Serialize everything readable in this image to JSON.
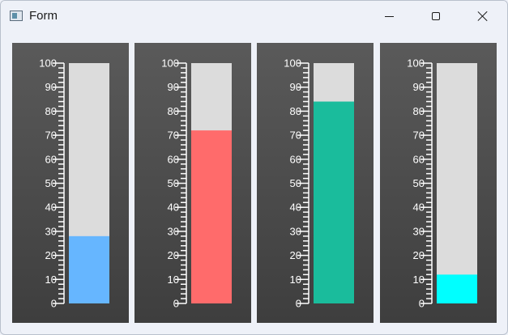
{
  "window": {
    "title": "Form",
    "controls": {
      "minimize": "minimize",
      "maximize": "maximize",
      "close": "close"
    }
  },
  "scale": {
    "min": 0,
    "max": 100,
    "major_step": 10,
    "minor_step": 2
  },
  "gauges": [
    {
      "value": 28,
      "fill_color": "#66b6ff"
    },
    {
      "value": 72,
      "fill_color": "#ff6b6b"
    },
    {
      "value": 84,
      "fill_color": "#1abc9c"
    },
    {
      "value": 12,
      "fill_color": "#00ffff"
    }
  ],
  "colors": {
    "track": "#dcdcdc",
    "panel_top": "#5a5a5a",
    "panel_bottom": "#3e3e3e",
    "ticks": "#ffffff"
  }
}
